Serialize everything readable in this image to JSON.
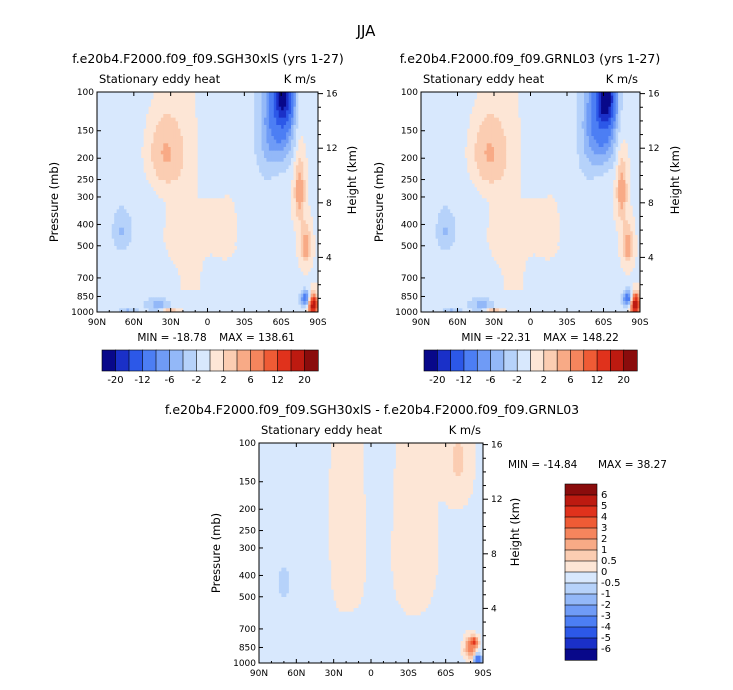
{
  "figure": {
    "season": "JJA",
    "colors": {
      "neg": [
        "#08088a",
        "#1a30c8",
        "#2c58e8",
        "#4c7ef4",
        "#6f9bf6",
        "#93b8f8",
        "#b6d2fa",
        "#d8e8fd"
      ],
      "pos": [
        "#fde6d6",
        "#fbcdb2",
        "#f8aa86",
        "#f5855d",
        "#ef5b35",
        "#e0321c",
        "#bd1a10",
        "#8a0c0c"
      ]
    }
  },
  "chart_data": [
    {
      "type": "heatmap",
      "id": "left",
      "title": "f.e20b4.F2000.f09_f09.SGH30xlS (yrs 1-27)",
      "subtitle_left": "Stationary eddy heat",
      "subtitle_right": "K m/s",
      "ylabel": "Pressure (mb)",
      "y2label": "Height (km)",
      "x_ticks": [
        "90N",
        "60N",
        "30N",
        "0",
        "30S",
        "60S",
        "90S"
      ],
      "y_ticks": [
        "100",
        "150",
        "200",
        "250",
        "300",
        "400",
        "500",
        "700",
        "850",
        "1000"
      ],
      "y2_ticks": [
        "16",
        "12",
        "8",
        "4"
      ],
      "min_label": "MIN = -18.78",
      "max_label": "MAX = 138.61",
      "colorbar_labels": [
        "-20",
        "-12",
        "-6",
        "-2",
        "2",
        "6",
        "12",
        "20"
      ],
      "features": [
        {
          "lat": 35,
          "p": 190,
          "sx": 11,
          "sy": 58,
          "v": 5
        },
        {
          "lat": 30,
          "p": 450,
          "sx": 10,
          "sy": 110,
          "v": 1
        },
        {
          "lat": -15,
          "p": 420,
          "sx": 14,
          "sy": 120,
          "v": 1
        },
        {
          "lat": -60,
          "p": 130,
          "sx": 8,
          "sy": 55,
          "v": -9
        },
        {
          "lat": -62,
          "p": 105,
          "sx": 5,
          "sy": 22,
          "v": -14
        },
        {
          "lat": -48,
          "p": 150,
          "sx": 6,
          "sy": 70,
          "v": -3
        },
        {
          "lat": 70,
          "p": 430,
          "sx": 5,
          "sy": 60,
          "v": -3
        },
        {
          "lat": 40,
          "p": 930,
          "sx": 5,
          "sy": 30,
          "v": -4
        },
        {
          "lat": 30,
          "p": 990,
          "sx": 5,
          "sy": 15,
          "v": 6
        },
        {
          "lat": 65,
          "p": 990,
          "sx": 4,
          "sy": 15,
          "v": -3
        },
        {
          "lat": -75,
          "p": 280,
          "sx": 3,
          "sy": 70,
          "v": 6
        },
        {
          "lat": -80,
          "p": 500,
          "sx": 3,
          "sy": 70,
          "v": 6
        },
        {
          "lat": -80,
          "p": 870,
          "sx": 3,
          "sy": 50,
          "v": -10
        },
        {
          "lat": -86,
          "p": 930,
          "sx": 2.5,
          "sy": 70,
          "v": 20
        }
      ]
    },
    {
      "type": "heatmap",
      "id": "right",
      "title": "f.e20b4.F2000.f09_f09.GRNL03 (yrs 1-27)",
      "subtitle_left": "Stationary eddy heat",
      "subtitle_right": "K m/s",
      "ylabel": "Pressure (mb)",
      "y2label": "Height (km)",
      "x_ticks": [
        "90N",
        "60N",
        "30N",
        "0",
        "30S",
        "60S",
        "90S"
      ],
      "y_ticks": [
        "100",
        "150",
        "200",
        "250",
        "300",
        "400",
        "500",
        "700",
        "850",
        "1000"
      ],
      "y2_ticks": [
        "16",
        "12",
        "8",
        "4"
      ],
      "min_label": "MIN = -22.31",
      "max_label": "MAX = 148.22",
      "colorbar_labels": [
        "-20",
        "-12",
        "-6",
        "-2",
        "2",
        "6",
        "12",
        "20"
      ],
      "features": [
        {
          "lat": 35,
          "p": 190,
          "sx": 11,
          "sy": 58,
          "v": 5
        },
        {
          "lat": 30,
          "p": 450,
          "sx": 10,
          "sy": 110,
          "v": 1
        },
        {
          "lat": -15,
          "p": 420,
          "sx": 14,
          "sy": 120,
          "v": 1
        },
        {
          "lat": -60,
          "p": 130,
          "sx": 8,
          "sy": 55,
          "v": -10
        },
        {
          "lat": -62,
          "p": 105,
          "sx": 5,
          "sy": 22,
          "v": -16
        },
        {
          "lat": -48,
          "p": 150,
          "sx": 6,
          "sy": 70,
          "v": -3
        },
        {
          "lat": 70,
          "p": 430,
          "sx": 5,
          "sy": 60,
          "v": -3
        },
        {
          "lat": 40,
          "p": 930,
          "sx": 5,
          "sy": 30,
          "v": -4
        },
        {
          "lat": 30,
          "p": 990,
          "sx": 5,
          "sy": 15,
          "v": 6
        },
        {
          "lat": 65,
          "p": 990,
          "sx": 4,
          "sy": 15,
          "v": -3
        },
        {
          "lat": -75,
          "p": 280,
          "sx": 3,
          "sy": 70,
          "v": 6
        },
        {
          "lat": -80,
          "p": 500,
          "sx": 3,
          "sy": 70,
          "v": 6
        },
        {
          "lat": -80,
          "p": 870,
          "sx": 3,
          "sy": 50,
          "v": -11
        },
        {
          "lat": -86,
          "p": 930,
          "sx": 2.5,
          "sy": 70,
          "v": 22
        }
      ]
    },
    {
      "type": "heatmap",
      "id": "diff",
      "title": "f.e20b4.F2000.f09_f09.SGH30xlS - f.e20b4.F2000.f09_f09.GRNL03",
      "subtitle_left": "Stationary eddy heat",
      "subtitle_right": "K m/s",
      "ylabel": "Pressure (mb)",
      "y2label": "Height (km)",
      "x_ticks": [
        "90N",
        "60N",
        "30N",
        "0",
        "30S",
        "60S",
        "90S"
      ],
      "y_ticks": [
        "100",
        "150",
        "200",
        "250",
        "300",
        "400",
        "500",
        "700",
        "850",
        "1000"
      ],
      "y2_ticks": [
        "16",
        "12",
        "8",
        "4"
      ],
      "min_label": "MIN = -14.84",
      "max_label": "MAX =  38.27",
      "colorbar_labels": [
        "6",
        "5",
        "4",
        "3",
        "2",
        "1",
        "0.5",
        "0",
        "-0.5",
        "-1",
        "-2",
        "-3",
        "-4",
        "-5",
        "-6"
      ],
      "features": [
        {
          "lat": 20,
          "p": 280,
          "sx": 14,
          "sy": 230,
          "v": 0.25
        },
        {
          "lat": -35,
          "p": 300,
          "sx": 14,
          "sy": 230,
          "v": 0.25
        },
        {
          "lat": -70,
          "p": 120,
          "sx": 7,
          "sy": 40,
          "v": 0.7
        },
        {
          "lat": 70,
          "p": 430,
          "sx": 4,
          "sy": 55,
          "v": -0.8
        },
        {
          "lat": 45,
          "p": 400,
          "sx": 7,
          "sy": 250,
          "v": -0.25
        },
        {
          "lat": -5,
          "p": 250,
          "sx": 5,
          "sy": 160,
          "v": -0.25
        },
        {
          "lat": -80,
          "p": 860,
          "sx": 3,
          "sy": 60,
          "v": 2.5
        },
        {
          "lat": -86,
          "p": 960,
          "sx": 2,
          "sy": 30,
          "v": -5
        },
        {
          "lat": -83,
          "p": 800,
          "sx": 2,
          "sy": 25,
          "v": 4
        }
      ]
    }
  ]
}
